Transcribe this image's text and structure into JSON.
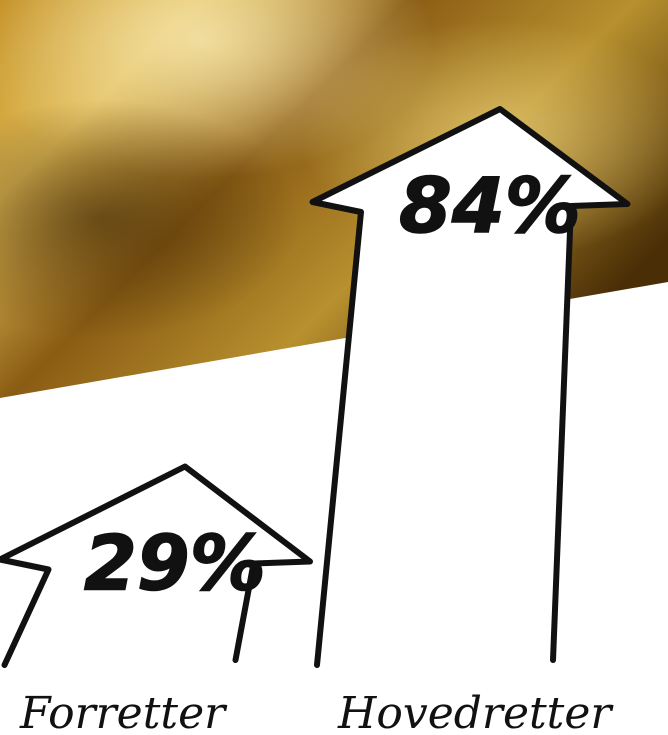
{
  "chart_data": {
    "type": "bar",
    "categories": [
      "Forretter",
      "Hovedretter"
    ],
    "values": [
      29,
      84
    ],
    "value_labels": [
      "29%",
      "84%"
    ],
    "unit": "%",
    "ylim": [
      0,
      100
    ],
    "title": "",
    "xlabel": "",
    "ylabel": "",
    "grid": false,
    "legend": "none"
  },
  "colors": {
    "arrow_fill": "#ffffff",
    "arrow_stroke": "#111111",
    "photo_dark": "#5a3a08",
    "photo_mid": "#a87a1e",
    "photo_light": "#e6c468"
  }
}
